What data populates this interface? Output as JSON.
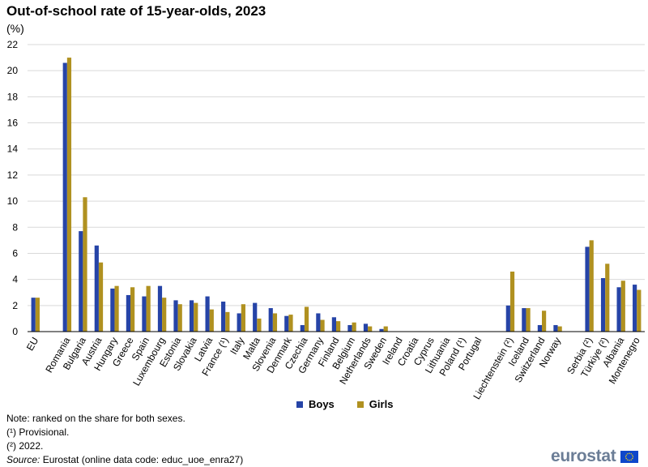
{
  "title": "Out-of-school rate of 15-year-olds, 2023",
  "unit": "(%)",
  "colors": {
    "boys": "#2644a7",
    "girls": "#b09120",
    "grid": "#d9d9d9",
    "axis": "#000000"
  },
  "chart_data": {
    "type": "bar",
    "title": "Out-of-school rate of 15-year-olds, 2023",
    "ylabel": "(%)",
    "xlabel": "",
    "ylim": [
      0,
      22
    ],
    "yticks": [
      0,
      2,
      4,
      6,
      8,
      10,
      12,
      14,
      16,
      18,
      20,
      22
    ],
    "grid": true,
    "legend_position": "bottom",
    "categories": [
      "EU",
      "",
      "Romania",
      "Bulgaria",
      "Austria",
      "Hungary",
      "Greece",
      "Spain",
      "Luxembourg",
      "Estonia",
      "Slovakia",
      "Latvia",
      "France (¹)",
      "Italy",
      "Malta",
      "Slovenia",
      "Denmark",
      "Czechia",
      "Germany",
      "Finland",
      "Belgium",
      "Netherlands",
      "Sweden",
      "Ireland",
      "Croatia",
      "Cyprus",
      "Lithuania",
      "Poland (¹)",
      "Portugal",
      "",
      "Liechtenstein (²)",
      "Iceland",
      "Switzerland",
      "Norway",
      "",
      "Serbia (²)",
      "Türkiye (²)",
      "Albania",
      "Montenegro"
    ],
    "series": [
      {
        "name": "Boys",
        "values": [
          2.6,
          null,
          20.6,
          7.7,
          6.6,
          3.3,
          2.8,
          2.7,
          3.5,
          2.4,
          2.4,
          2.7,
          2.3,
          1.4,
          2.2,
          1.8,
          1.2,
          0.5,
          1.4,
          1.1,
          0.5,
          0.6,
          0.2,
          null,
          null,
          null,
          null,
          null,
          null,
          null,
          2.0,
          1.8,
          0.5,
          0.5,
          null,
          6.5,
          4.1,
          3.4,
          3.6
        ]
      },
      {
        "name": "Girls",
        "values": [
          2.6,
          null,
          21.0,
          10.3,
          5.3,
          3.5,
          3.4,
          3.5,
          2.6,
          2.1,
          2.2,
          1.7,
          1.5,
          2.1,
          1.0,
          1.4,
          1.3,
          1.9,
          0.9,
          0.8,
          0.7,
          0.4,
          0.4,
          null,
          null,
          null,
          null,
          null,
          null,
          null,
          4.6,
          1.8,
          1.6,
          0.4,
          null,
          7.0,
          5.2,
          3.9,
          3.2
        ]
      }
    ]
  },
  "legend": {
    "boys": "Boys",
    "girls": "Girls"
  },
  "notes": {
    "note": "Note: ranked on the share for both sexes.",
    "fn1": "(¹) Provisional.",
    "fn2": "(²) 2022.",
    "source_label": "Source:",
    "source_text": " Eurostat (online data code: educ_uoe_enra27)"
  },
  "logo": {
    "text": "eurostat",
    "icon": "eu-flag-icon"
  }
}
